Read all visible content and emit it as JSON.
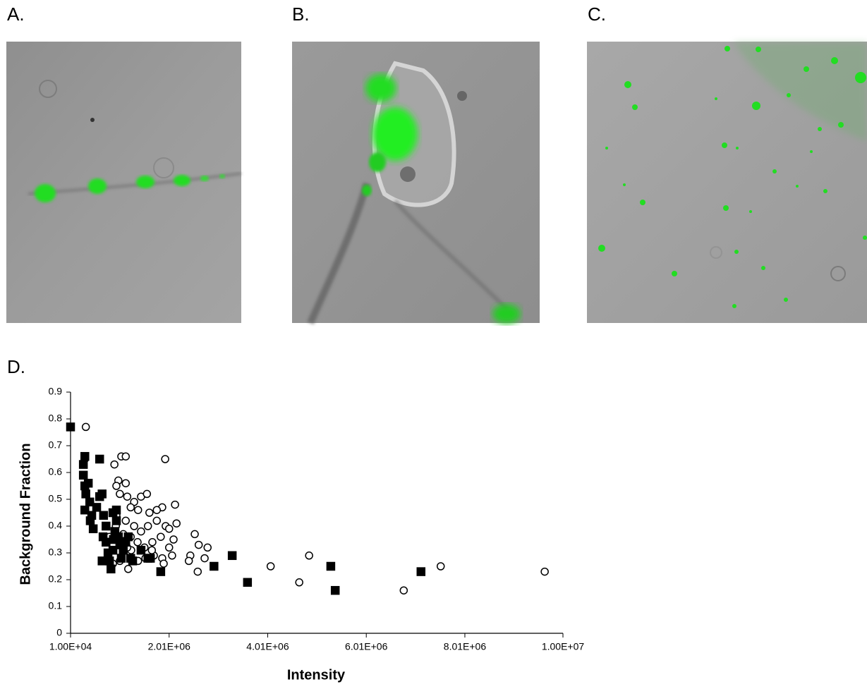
{
  "panel_labels": [
    "A.",
    "B.",
    "C.",
    "D."
  ],
  "chart_data": {
    "type": "scatter",
    "x_label": "Intensity",
    "y_label": "Background Fraction",
    "xlim": [
      10000,
      10000000
    ],
    "ylim": [
      0,
      0.9
    ],
    "xticks": [
      {
        "value": 10000,
        "label": "1.00E+04"
      },
      {
        "value": 2010000,
        "label": "2.01E+06"
      },
      {
        "value": 4010000,
        "label": "4.01E+06"
      },
      {
        "value": 6010000,
        "label": "6.01E+06"
      },
      {
        "value": 8010000,
        "label": "8.01E+06"
      },
      {
        "value": 10000000,
        "label": "1.00E+07"
      }
    ],
    "yticks": [
      0,
      0.1,
      0.2,
      0.3,
      0.4,
      0.5,
      0.6,
      0.7,
      0.8,
      0.9
    ],
    "grid": false,
    "series": [
      {
        "marker": "circle",
        "color": "#ffffff",
        "edge_color": "#000000",
        "x": [
          320000,
          300000,
          1040000,
          1130000,
          1930000,
          900000,
          980000,
          1130000,
          940000,
          1010000,
          1160000,
          1300000,
          1440000,
          1560000,
          1870000,
          2130000,
          1760000,
          1610000,
          1380000,
          1230000,
          940000,
          1130000,
          1300000,
          1440000,
          1580000,
          1760000,
          1940000,
          2160000,
          930000,
          1080000,
          1230000,
          1370000,
          1510000,
          1670000,
          1840000,
          2010000,
          2100000,
          1530000,
          1700000,
          1870000,
          2010000,
          2070000,
          1900000,
          2530000,
          2440000,
          2410000,
          2610000,
          2790000,
          2730000,
          2590000,
          4070000,
          4850000,
          4650000,
          6770000,
          7520000,
          9630000,
          870000,
          1180000,
          1380000,
          1660000,
          1240000,
          1010000,
          800000,
          1160000
        ],
        "values": [
          0.77,
          0.65,
          0.66,
          0.66,
          0.65,
          0.63,
          0.57,
          0.56,
          0.55,
          0.52,
          0.51,
          0.49,
          0.51,
          0.52,
          0.47,
          0.48,
          0.46,
          0.45,
          0.46,
          0.47,
          0.44,
          0.42,
          0.4,
          0.38,
          0.4,
          0.42,
          0.4,
          0.41,
          0.4,
          0.37,
          0.36,
          0.34,
          0.32,
          0.34,
          0.36,
          0.39,
          0.35,
          0.28,
          0.29,
          0.28,
          0.32,
          0.29,
          0.26,
          0.37,
          0.29,
          0.27,
          0.33,
          0.32,
          0.28,
          0.23,
          0.25,
          0.29,
          0.19,
          0.16,
          0.25,
          0.23,
          0.26,
          0.24,
          0.27,
          0.31,
          0.31,
          0.27,
          0.36,
          0.32
        ]
      },
      {
        "marker": "square",
        "color": "#000000",
        "edge_color": "#000000",
        "x": [
          10000,
          300000,
          270000,
          270000,
          300000,
          320000,
          370000,
          400000,
          300000,
          440000,
          410000,
          470000,
          540000,
          600000,
          650000,
          600000,
          680000,
          730000,
          670000,
          730000,
          770000,
          800000,
          830000,
          870000,
          880000,
          910000,
          940000,
          980000,
          1010000,
          1040000,
          1080000,
          1130000,
          1180000,
          1230000,
          1270000,
          1440000,
          1580000,
          1630000,
          1840000,
          2920000,
          3290000,
          3600000,
          5290000,
          5380000,
          7120000,
          650000,
          870000,
          940000
        ],
        "values": [
          0.77,
          0.66,
          0.63,
          0.59,
          0.55,
          0.52,
          0.56,
          0.49,
          0.46,
          0.44,
          0.42,
          0.39,
          0.47,
          0.51,
          0.52,
          0.65,
          0.44,
          0.4,
          0.36,
          0.34,
          0.3,
          0.27,
          0.24,
          0.31,
          0.35,
          0.38,
          0.42,
          0.36,
          0.33,
          0.28,
          0.31,
          0.34,
          0.36,
          0.28,
          0.27,
          0.31,
          0.28,
          0.28,
          0.23,
          0.25,
          0.29,
          0.19,
          0.25,
          0.16,
          0.23,
          0.27,
          0.45,
          0.46
        ]
      }
    ]
  }
}
